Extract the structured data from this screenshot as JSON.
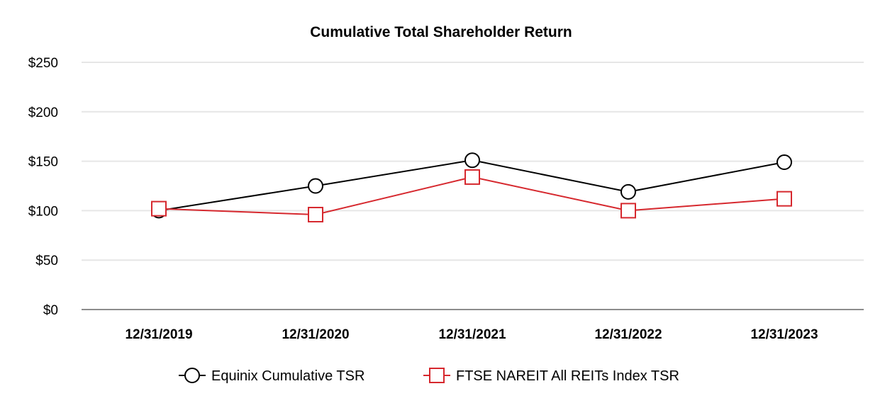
{
  "chart_data": {
    "type": "line",
    "title": "Cumulative Total Shareholder Return",
    "xlabel": "",
    "ylabel": "",
    "categories": [
      "12/31/2019",
      "12/31/2020",
      "12/31/2021",
      "12/31/2022",
      "12/31/2023"
    ],
    "ylim": [
      0,
      250
    ],
    "yticks": [
      0,
      50,
      100,
      150,
      200,
      250
    ],
    "ytick_labels": [
      "$0",
      "$50",
      "$100",
      "$150",
      "$200",
      "$250"
    ],
    "grid": true,
    "legend_position": "bottom-center",
    "series": [
      {
        "name": "Equinix Cumulative TSR",
        "marker": "circle",
        "color": "#000000",
        "values": [
          100,
          125,
          151,
          119,
          149
        ]
      },
      {
        "name": "FTSE NAREIT All REITs Index TSR",
        "marker": "square",
        "color": "#d6282e",
        "values": [
          102,
          96,
          134,
          100,
          112
        ]
      }
    ]
  }
}
